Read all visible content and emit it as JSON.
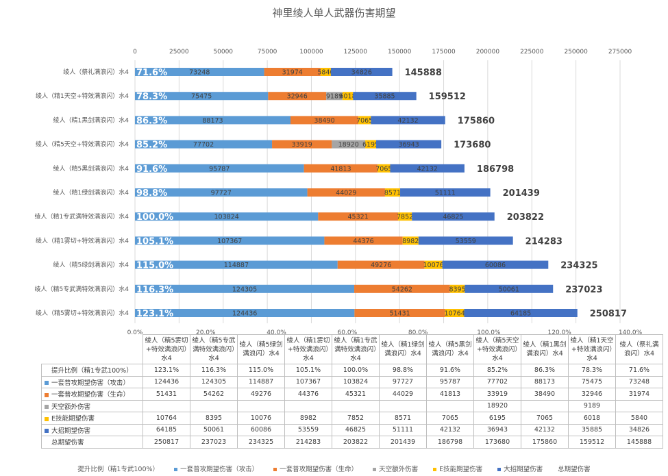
{
  "chart_data": {
    "type": "bar",
    "orientation": "horizontal",
    "stacked": true,
    "title": "神里绫人单人武器伤害期望",
    "categories": [
      "绫人（精5雾切+特效满浪闪）水4",
      "绫人（精5专武满特效满浪闪）水4",
      "绫人（精5绿剑满浪闪）水4",
      "绫人（精1雾切+特效满浪闪）水4",
      "绫人（精1专武满特效满浪闪）水4",
      "绫人（精1绿剑满浪闪）水4",
      "绫人（精5黑剑满浪闪）水4",
      "绫人（精5天空+特效满浪闪）水4",
      "绫人（精1黑剑满浪闪）水4",
      "绫人（精1天空+特效满浪闪）水4",
      "绫人（祭礼满浪闪）水4"
    ],
    "ratio": {
      "name": "提升比例（精1专武100%）",
      "values": [
        "123.1%",
        "116.3%",
        "115.0%",
        "105.1%",
        "100.0%",
        "98.8%",
        "91.6%",
        "85.2%",
        "86.3%",
        "78.3%",
        "71.6%"
      ]
    },
    "series": [
      {
        "name": "一套普攻期望伤害（攻击）",
        "color": "#5b9bd5",
        "values": [
          124436,
          124305,
          114887,
          107367,
          103824,
          97727,
          95787,
          77702,
          88173,
          75475,
          73248
        ]
      },
      {
        "name": "一套普攻期望伤害（生命）",
        "color": "#ed7d31",
        "values": [
          51431,
          54262,
          49276,
          44376,
          45321,
          44029,
          41813,
          33919,
          38490,
          32946,
          31974
        ]
      },
      {
        "name": "天空额外伤害",
        "color": "#a5a5a5",
        "values": [
          null,
          null,
          null,
          null,
          null,
          null,
          null,
          18920,
          null,
          9189,
          null
        ]
      },
      {
        "name": "E技能期望伤害",
        "color": "#ffc000",
        "values": [
          10764,
          8395,
          10076,
          8982,
          7852,
          8571,
          7065,
          6195,
          7065,
          6018,
          5840
        ]
      },
      {
        "name": "大招期望伤害",
        "color": "#4472c4",
        "values": [
          64185,
          50061,
          60086,
          53559,
          46825,
          51111,
          42132,
          36943,
          42132,
          35885,
          34826
        ]
      }
    ],
    "total": {
      "name": "总期望伤害",
      "values": [
        250817,
        237023,
        234325,
        214283,
        203822,
        201439,
        186798,
        173680,
        175860,
        159512,
        145888
      ]
    },
    "x_top_ticks": [
      "0",
      "25000",
      "50000",
      "75000",
      "100000",
      "125000",
      "150000",
      "175000",
      "200000",
      "225000",
      "250000",
      "275000"
    ],
    "xlim_top": [
      0,
      275000
    ],
    "x_bottom_ticks": [
      "0.0%",
      "20.0%",
      "40.0%",
      "60.0%",
      "80.0%",
      "100.0%",
      "120.0%",
      "140.0%"
    ],
    "xlim_bottom": [
      0,
      140
    ],
    "grid": true,
    "legend_position": "bottom"
  }
}
